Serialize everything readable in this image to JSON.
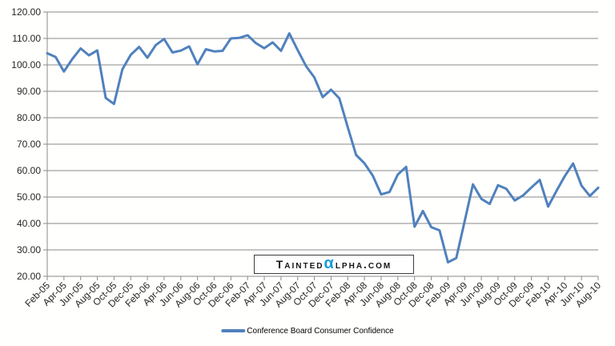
{
  "chart_data": {
    "type": "line",
    "title": "",
    "xlabel": "",
    "ylabel": "",
    "ylim": [
      20,
      120
    ],
    "ytick_step": 10,
    "grid": "horizontal",
    "legend_position": "bottom-center",
    "y_tick_labels": [
      "120.00",
      "110.00",
      "100.00",
      "90.00",
      "80.00",
      "70.00",
      "60.00",
      "50.00",
      "40.00",
      "30.00",
      "20.00"
    ],
    "x_tick_labels": [
      "Feb-05",
      "Apr-05",
      "Jun-05",
      "Aug-05",
      "Oct-05",
      "Dec-05",
      "Feb-06",
      "Apr-06",
      "Jun-06",
      "Aug-06",
      "Oct-06",
      "Dec-06",
      "Feb-07",
      "Apr-07",
      "Jun-07",
      "Aug-07",
      "Oct-07",
      "Dec-07",
      "Feb-08",
      "Apr-08",
      "Jun-08",
      "Aug-08",
      "Oct-08",
      "Dec-08",
      "Feb-09",
      "Apr-09",
      "Jun-09",
      "Aug-09",
      "Oct-09",
      "Dec-09",
      "Feb-10",
      "Apr-10",
      "Jun-10",
      "Aug-10"
    ],
    "x": [
      "Feb-05",
      "Mar-05",
      "Apr-05",
      "May-05",
      "Jun-05",
      "Jul-05",
      "Aug-05",
      "Sep-05",
      "Oct-05",
      "Nov-05",
      "Dec-05",
      "Jan-06",
      "Feb-06",
      "Mar-06",
      "Apr-06",
      "May-06",
      "Jun-06",
      "Jul-06",
      "Aug-06",
      "Sep-06",
      "Oct-06",
      "Nov-06",
      "Dec-06",
      "Jan-07",
      "Feb-07",
      "Mar-07",
      "Apr-07",
      "May-07",
      "Jun-07",
      "Jul-07",
      "Aug-07",
      "Sep-07",
      "Oct-07",
      "Nov-07",
      "Dec-07",
      "Jan-08",
      "Feb-08",
      "Mar-08",
      "Apr-08",
      "May-08",
      "Jun-08",
      "Jul-08",
      "Aug-08",
      "Sep-08",
      "Oct-08",
      "Nov-08",
      "Dec-08",
      "Jan-09",
      "Feb-09",
      "Mar-09",
      "Apr-09",
      "May-09",
      "Jun-09",
      "Jul-09",
      "Aug-09",
      "Sep-09",
      "Oct-09",
      "Nov-09",
      "Dec-09",
      "Jan-10",
      "Feb-10",
      "Mar-10",
      "Apr-10",
      "May-10",
      "Jun-10",
      "Jul-10",
      "Aug-10"
    ],
    "series": [
      {
        "name": "Conference Board Consumer Confidence",
        "color": "#4F81BD",
        "values": [
          104.4,
          103.0,
          97.5,
          102.2,
          106.2,
          103.6,
          105.5,
          87.5,
          85.2,
          98.3,
          103.8,
          106.8,
          102.7,
          107.5,
          109.8,
          104.7,
          105.4,
          107.0,
          100.2,
          105.9,
          105.1,
          105.3,
          110.0,
          110.2,
          111.2,
          108.2,
          106.3,
          108.5,
          105.3,
          111.9,
          105.6,
          99.5,
          95.2,
          87.8,
          90.6,
          87.3,
          76.4,
          65.9,
          62.8,
          58.1,
          51.0,
          51.9,
          58.5,
          61.4,
          38.8,
          44.7,
          38.6,
          37.4,
          25.3,
          26.9,
          40.8,
          54.8,
          49.3,
          47.4,
          54.5,
          53.1,
          48.7,
          50.6,
          53.6,
          56.5,
          46.4,
          52.3,
          57.9,
          62.7,
          54.3,
          50.4,
          53.5
        ]
      }
    ]
  },
  "legend": {
    "label": "Conference Board Consumer Confidence"
  },
  "watermark": {
    "part1": "Tainted",
    "alpha": "α",
    "part2": "lpha.com"
  },
  "colors": {
    "line": "#4F81BD",
    "grid": "#8a8a8a",
    "axis": "#8a8a8a",
    "label": "#262626",
    "watermark_alpha": "#189BD9"
  }
}
